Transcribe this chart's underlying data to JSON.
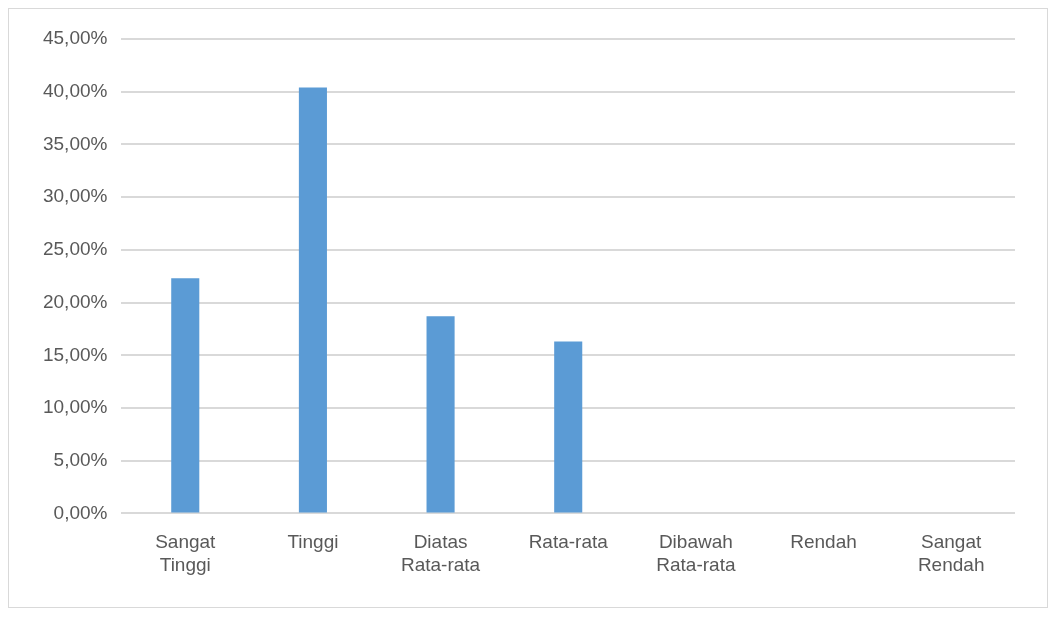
{
  "chart_data": {
    "type": "bar",
    "categories": [
      "Sangat Tinggi",
      "Tinggi",
      "Diatas Rata-rata",
      "Rata-rata",
      "Dibawah Rata-rata",
      "Rendah",
      "Sangat Rendah"
    ],
    "values": [
      22.3,
      40.4,
      18.7,
      16.3,
      0,
      0,
      0
    ],
    "color": "#5b9bd5",
    "ylim": [
      0,
      45
    ],
    "yticks": [
      {
        "value": 0,
        "label": "0,00%"
      },
      {
        "value": 5,
        "label": "5,00%"
      },
      {
        "value": 10,
        "label": "10,00%"
      },
      {
        "value": 15,
        "label": "15,00%"
      },
      {
        "value": 20,
        "label": "20,00%"
      },
      {
        "value": 25,
        "label": "25,00%"
      },
      {
        "value": 30,
        "label": "30,00%"
      },
      {
        "value": 35,
        "label": "35,00%"
      },
      {
        "value": 40,
        "label": "40,00%"
      },
      {
        "value": 45,
        "label": "45,00%"
      }
    ],
    "grid": "y",
    "legend": false
  }
}
